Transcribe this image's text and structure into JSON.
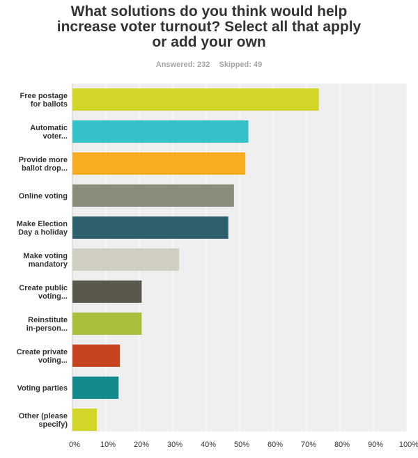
{
  "header": {
    "title_lines": [
      "What solutions do you think would help",
      "increase voter turnout? Select all that apply",
      "or add your own"
    ],
    "answered": "Answered: 232",
    "skipped": "Skipped: 49"
  },
  "chart_data": {
    "type": "bar",
    "orientation": "horizontal",
    "title": "What solutions do you think would help increase voter turnout? Select all that apply or add your own",
    "categories": [
      [
        "Free postage",
        "for ballots"
      ],
      [
        "Automatic",
        "voter..."
      ],
      [
        "Provide more",
        "ballot drop..."
      ],
      [
        "Online voting"
      ],
      [
        "Make Election",
        "Day a holiday"
      ],
      [
        "Make voting",
        "mandatory"
      ],
      [
        "Create public",
        "voting..."
      ],
      [
        "Reinstitute",
        "in-person..."
      ],
      [
        "Create private",
        "voting..."
      ],
      [
        "Voting parties"
      ],
      [
        "Other (please",
        "specify)"
      ]
    ],
    "values": [
      73.7,
      52.6,
      51.7,
      48.3,
      46.6,
      31.9,
      20.7,
      20.7,
      14.2,
      13.8,
      7.3
    ],
    "value_unit": "%",
    "colors": [
      "#d1d629",
      "#36c0c8",
      "#f7ac21",
      "#8a8c7c",
      "#2d5f6d",
      "#d1cfc1",
      "#5a584b",
      "#a8be3c",
      "#c8431f",
      "#128a8c",
      "#d1d629"
    ],
    "xlim": [
      0,
      100
    ],
    "xticks": [
      "0%",
      "10%",
      "20%",
      "30%",
      "40%",
      "50%",
      "60%",
      "70%",
      "80%",
      "90%",
      "100%"
    ],
    "grid": true,
    "plot_background": "#efefef",
    "gridline_color": "#ffffff"
  }
}
